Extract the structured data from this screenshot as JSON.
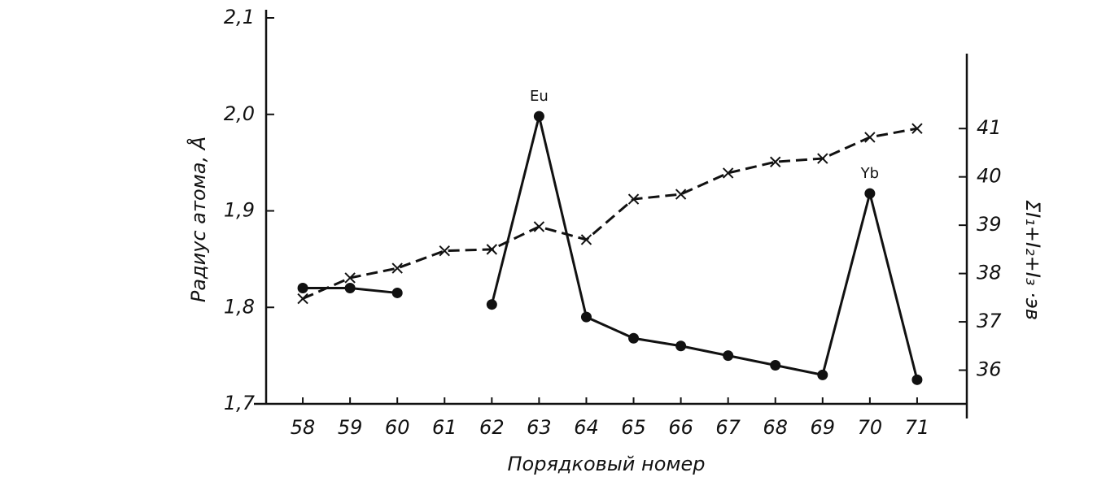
{
  "chart_data": {
    "type": "line",
    "ylabel": "Радиус атома, Å",
    "xlabel": "Порядковый номер",
    "y2label": "ΣI₁+I₂+I₃ ·эв",
    "x": [
      58,
      59,
      60,
      61,
      62,
      63,
      64,
      65,
      66,
      67,
      68,
      69,
      70,
      71
    ],
    "xlim": [
      57,
      72
    ],
    "xticks": [
      58,
      59,
      60,
      61,
      62,
      63,
      64,
      65,
      66,
      67,
      68,
      69,
      70,
      71
    ],
    "ylim": [
      1.7,
      2.1
    ],
    "yticks": [
      {
        "value": 1.7,
        "label": "1,7"
      },
      {
        "value": 1.8,
        "label": "1,8"
      },
      {
        "value": 1.9,
        "label": "1,9"
      },
      {
        "value": 2.0,
        "label": "2,0"
      },
      {
        "value": 2.1,
        "label": "2,1"
      }
    ],
    "y2lim": [
      35,
      42.5
    ],
    "y2ticks": [
      36,
      37,
      38,
      39,
      40,
      41
    ],
    "series": [
      {
        "color": "#111111",
        "style": "solid",
        "marker": "circle",
        "values": [
          1.82,
          1.82,
          1.815,
          null,
          1.803,
          1.998,
          1.79,
          1.768,
          1.76,
          1.75,
          1.74,
          1.73,
          1.918,
          1.725
        ]
      },
      {
        "color": "#111111",
        "style": "dashed",
        "marker": "cross",
        "axis": "y2",
        "values": [
          37.48,
          37.91,
          38.11,
          38.47,
          38.5,
          38.97,
          38.7,
          39.54,
          39.64,
          40.08,
          40.31,
          40.38,
          40.82,
          41.0
        ]
      }
    ],
    "annotations": [
      {
        "text": "Eu",
        "x": 63,
        "y": 1.998
      },
      {
        "text": "Yb",
        "x": 70,
        "y": 1.918
      }
    ]
  }
}
